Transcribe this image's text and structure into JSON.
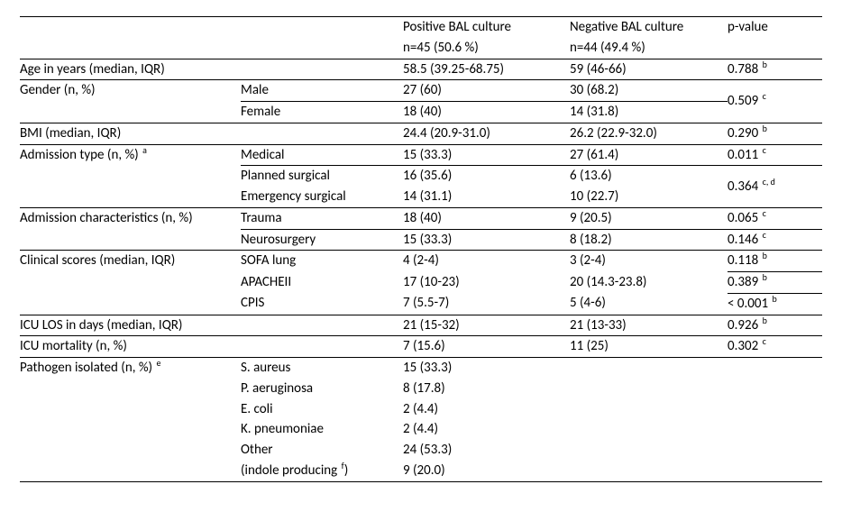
{
  "header": {
    "col3a": "Positive BAL culture",
    "col3b": "n=45 (50.6 %)",
    "col4a": "Negative BAL culture",
    "col4b": "n=44 (49.4 %)",
    "col5": "p-value"
  },
  "rows": {
    "age": {
      "label": "Age in years (median, IQR)",
      "pos": "58.5 (39.25-68.75)",
      "neg": "59 (46-66)",
      "p": "0.788",
      "sup": "b"
    },
    "gender": {
      "label": "Gender (n, %)",
      "male": {
        "lab": "Male",
        "pos": "27 (60)",
        "neg": "30 (68.2)"
      },
      "female": {
        "lab": "Female",
        "pos": "18 (40)",
        "neg": "14 (31.8)"
      },
      "p": "0.509",
      "sup": "c"
    },
    "bmi": {
      "label": "BMI (median, IQR)",
      "pos": "24.4 (20.9-31.0)",
      "neg": "26.2 (22.9-32.0)",
      "p": "0.290",
      "sup": "b"
    },
    "adm": {
      "label": "Admission type (n, %)",
      "sup": "a",
      "med": {
        "lab": "Medical",
        "pos": "15 (33.3)",
        "neg": "27 (61.4)",
        "p": "0.011",
        "sup": "c"
      },
      "plan": {
        "lab": "Planned surgical",
        "pos": "16 (35.6)",
        "neg": "6 (13.6)"
      },
      "emerg": {
        "lab": "Emergency surgical",
        "pos": "14 (31.1)",
        "neg": "10 (22.7)"
      },
      "p2": "0.364",
      "sup2": "c, d"
    },
    "admchar": {
      "label": "Admission characteristics (n, %)",
      "trauma": {
        "lab": "Trauma",
        "pos": "18 (40)",
        "neg": "9 (20.5)",
        "p": "0.065",
        "sup": "c"
      },
      "neuro": {
        "lab": "Neurosurgery",
        "pos": "15 (33.3)",
        "neg": "8 (18.2)",
        "p": "0.146",
        "sup": "c"
      }
    },
    "scores": {
      "label": "Clinical scores (median, IQR)",
      "sofa": {
        "lab": "SOFA lung",
        "pos": "4 (2-4)",
        "neg": "3 (2-4)",
        "p": "0.118",
        "sup": "b"
      },
      "apache": {
        "lab": "APACHEII",
        "pos": "17 (10-23)",
        "neg": "20 (14.3-23.8)",
        "p": "0.389",
        "sup": "b"
      },
      "cpis": {
        "lab": "CPIS",
        "pos": "7 (5.5-7)",
        "neg": "5 (4-6)",
        "p": "< 0.001",
        "sup": "b"
      }
    },
    "los": {
      "label": "ICU LOS in days (median, IQR)",
      "pos": "21 (15-32)",
      "neg": "21 (13-33)",
      "p": "0.926",
      "sup": "b"
    },
    "mort": {
      "label": "ICU mortality (n, %)",
      "pos": "7 (15.6)",
      "neg": "11 (25)",
      "p": "0.302",
      "sup": "c"
    },
    "path": {
      "label": "Pathogen isolated (n, %)",
      "sup": "e",
      "items": [
        {
          "lab": "S. aureus",
          "pos": "15 (33.3)"
        },
        {
          "lab": "P. aeruginosa",
          "pos": "8 (17.8)"
        },
        {
          "lab": "E. coli",
          "pos": "2 (4.4)"
        },
        {
          "lab": "K. pneumoniae",
          "pos": "2 (4.4)"
        },
        {
          "lab": "Other",
          "pos": "24 (53.3)"
        }
      ],
      "indole_lab": "(indole producing",
      "indole_sup": "f",
      "indole_close": ")",
      "indole_pos": "9 (20.0)"
    }
  }
}
